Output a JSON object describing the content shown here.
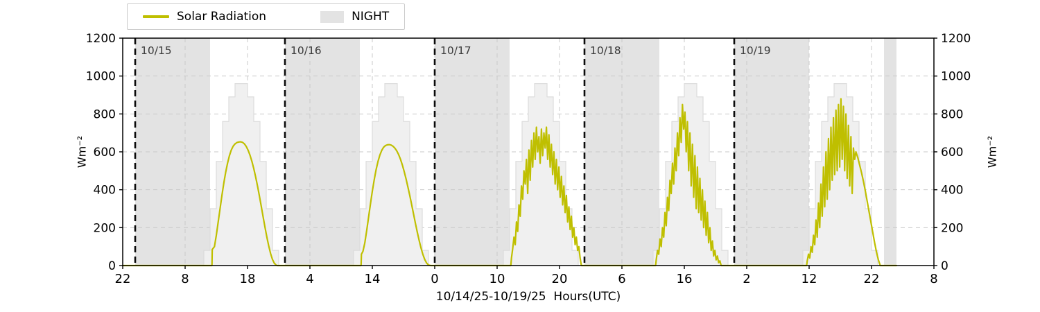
{
  "legend": {
    "items": [
      {
        "label": "Solar Radiation",
        "color": "#bfbf00"
      },
      {
        "label": "NIGHT",
        "color": "#e3e3e3"
      }
    ]
  },
  "chart_data": {
    "type": "line",
    "title": "",
    "grid": true,
    "legend_position": "top-left",
    "x_axis": {
      "label": "10/14/25-10/19/25  Hours(UTC)",
      "units": "hours since 10/14/25 22:00 UTC",
      "range": [
        0,
        130
      ],
      "tick_positions": [
        0,
        10,
        20,
        30,
        40,
        50,
        60,
        70,
        80,
        90,
        100,
        110,
        120,
        130
      ],
      "tick_labels": [
        "22",
        "8",
        "18",
        "4",
        "14",
        "0",
        "10",
        "20",
        "6",
        "16",
        "2",
        "12",
        "22",
        "8"
      ]
    },
    "y_axis": {
      "label": "Wm⁻²",
      "range": [
        0,
        1200
      ],
      "ticks": [
        0,
        200,
        400,
        600,
        800,
        1000,
        1200
      ]
    },
    "night_bands": {
      "color": "#e3e3e3",
      "intervals": [
        [
          2,
          14
        ],
        [
          26,
          38
        ],
        [
          50,
          62
        ],
        [
          74,
          86
        ],
        [
          98,
          110
        ],
        [
          122,
          124
        ]
      ]
    },
    "day_boundaries": [
      {
        "t": 2,
        "label": "10/15"
      },
      {
        "t": 26,
        "label": "10/16"
      },
      {
        "t": 50,
        "label": "10/17"
      },
      {
        "t": 74,
        "label": "10/18"
      },
      {
        "t": 98,
        "label": "10/19"
      }
    ],
    "clear_sky_envelope": {
      "fill": "#f0f0f0",
      "edge": "#dcdcdc",
      "day_start_hours": [
        13,
        37,
        61,
        85,
        109
      ],
      "hourly_values": [
        80,
        300,
        550,
        760,
        890,
        960,
        960,
        890,
        760,
        550,
        300,
        80
      ]
    },
    "series": [
      {
        "name": "Solar Radiation",
        "color": "#bfbf00",
        "points": [
          [
            0,
            0
          ],
          [
            14.3,
            0
          ],
          [
            14.35,
            85
          ],
          [
            14.7,
            100
          ],
          [
            15.0,
            160
          ],
          [
            15.3,
            230
          ],
          [
            15.6,
            300
          ],
          [
            15.9,
            370
          ],
          [
            16.2,
            435
          ],
          [
            16.5,
            492
          ],
          [
            16.8,
            540
          ],
          [
            17.1,
            580
          ],
          [
            17.4,
            610
          ],
          [
            17.7,
            630
          ],
          [
            18.0,
            642
          ],
          [
            18.3,
            649
          ],
          [
            18.6,
            652
          ],
          [
            18.9,
            653
          ],
          [
            19.2,
            650
          ],
          [
            19.5,
            642
          ],
          [
            19.8,
            628
          ],
          [
            20.1,
            608
          ],
          [
            20.4,
            582
          ],
          [
            20.7,
            550
          ],
          [
            21.0,
            512
          ],
          [
            21.3,
            468
          ],
          [
            21.6,
            420
          ],
          [
            21.9,
            368
          ],
          [
            22.2,
            313
          ],
          [
            22.5,
            257
          ],
          [
            22.8,
            202
          ],
          [
            23.1,
            150
          ],
          [
            23.4,
            103
          ],
          [
            23.7,
            63
          ],
          [
            24.0,
            32
          ],
          [
            24.3,
            12
          ],
          [
            24.6,
            2
          ],
          [
            24.75,
            0
          ],
          [
            38.2,
            0
          ],
          [
            38.25,
            60
          ],
          [
            38.5,
            75
          ],
          [
            38.8,
            120
          ],
          [
            39.1,
            185
          ],
          [
            39.4,
            255
          ],
          [
            39.7,
            325
          ],
          [
            40.0,
            392
          ],
          [
            40.3,
            452
          ],
          [
            40.6,
            505
          ],
          [
            40.9,
            548
          ],
          [
            41.2,
            582
          ],
          [
            41.5,
            607
          ],
          [
            41.8,
            624
          ],
          [
            42.1,
            633
          ],
          [
            42.4,
            637
          ],
          [
            42.7,
            638
          ],
          [
            43.0,
            636
          ],
          [
            43.3,
            630
          ],
          [
            43.6,
            620
          ],
          [
            43.9,
            606
          ],
          [
            44.2,
            587
          ],
          [
            44.5,
            562
          ],
          [
            44.8,
            532
          ],
          [
            45.1,
            497
          ],
          [
            45.4,
            458
          ],
          [
            45.7,
            415
          ],
          [
            46.0,
            370
          ],
          [
            46.3,
            322
          ],
          [
            46.6,
            273
          ],
          [
            46.9,
            224
          ],
          [
            47.2,
            177
          ],
          [
            47.5,
            133
          ],
          [
            47.8,
            93
          ],
          [
            48.1,
            59
          ],
          [
            48.4,
            32
          ],
          [
            48.7,
            13
          ],
          [
            49.0,
            3
          ],
          [
            49.35,
            0
          ],
          [
            62.2,
            0
          ],
          [
            62.3,
            40
          ],
          [
            62.5,
            90
          ],
          [
            62.7,
            150
          ],
          [
            62.9,
            110
          ],
          [
            63.1,
            230
          ],
          [
            63.3,
            180
          ],
          [
            63.5,
            320
          ],
          [
            63.7,
            260
          ],
          [
            63.9,
            420
          ],
          [
            64.1,
            350
          ],
          [
            64.3,
            500
          ],
          [
            64.5,
            430
          ],
          [
            64.7,
            560
          ],
          [
            64.9,
            380
          ],
          [
            65.1,
            610
          ],
          [
            65.3,
            450
          ],
          [
            65.5,
            660
          ],
          [
            65.7,
            520
          ],
          [
            65.9,
            700
          ],
          [
            66.1,
            560
          ],
          [
            66.3,
            730
          ],
          [
            66.5,
            600
          ],
          [
            66.7,
            680
          ],
          [
            66.9,
            540
          ],
          [
            67.1,
            720
          ],
          [
            67.3,
            580
          ],
          [
            67.5,
            700
          ],
          [
            67.7,
            620
          ],
          [
            67.9,
            730
          ],
          [
            68.1,
            560
          ],
          [
            68.3,
            690
          ],
          [
            68.5,
            520
          ],
          [
            68.7,
            640
          ],
          [
            68.9,
            480
          ],
          [
            69.1,
            600
          ],
          [
            69.3,
            430
          ],
          [
            69.5,
            560
          ],
          [
            69.7,
            400
          ],
          [
            69.9,
            520
          ],
          [
            70.1,
            360
          ],
          [
            70.3,
            470
          ],
          [
            70.5,
            320
          ],
          [
            70.7,
            420
          ],
          [
            70.9,
            280
          ],
          [
            71.1,
            370
          ],
          [
            71.3,
            230
          ],
          [
            71.5,
            310
          ],
          [
            71.7,
            190
          ],
          [
            71.9,
            260
          ],
          [
            72.1,
            150
          ],
          [
            72.3,
            200
          ],
          [
            72.5,
            110
          ],
          [
            72.7,
            150
          ],
          [
            72.9,
            80
          ],
          [
            73.1,
            100
          ],
          [
            73.3,
            40
          ],
          [
            73.5,
            0
          ],
          [
            85.4,
            0
          ],
          [
            85.5,
            30
          ],
          [
            85.7,
            80
          ],
          [
            85.9,
            60
          ],
          [
            86.1,
            140
          ],
          [
            86.3,
            100
          ],
          [
            86.5,
            200
          ],
          [
            86.7,
            150
          ],
          [
            86.9,
            280
          ],
          [
            87.1,
            210
          ],
          [
            87.3,
            360
          ],
          [
            87.5,
            290
          ],
          [
            87.7,
            450
          ],
          [
            87.9,
            380
          ],
          [
            88.1,
            540
          ],
          [
            88.3,
            430
          ],
          [
            88.5,
            620
          ],
          [
            88.7,
            500
          ],
          [
            88.9,
            700
          ],
          [
            89.1,
            580
          ],
          [
            89.3,
            780
          ],
          [
            89.5,
            650
          ],
          [
            89.7,
            850
          ],
          [
            89.9,
            720
          ],
          [
            90.1,
            810
          ],
          [
            90.3,
            600
          ],
          [
            90.5,
            760
          ],
          [
            90.7,
            500
          ],
          [
            90.9,
            700
          ],
          [
            91.1,
            420
          ],
          [
            91.3,
            640
          ],
          [
            91.5,
            360
          ],
          [
            91.7,
            580
          ],
          [
            91.9,
            300
          ],
          [
            92.1,
            520
          ],
          [
            92.3,
            280
          ],
          [
            92.5,
            460
          ],
          [
            92.7,
            240
          ],
          [
            92.9,
            400
          ],
          [
            93.1,
            200
          ],
          [
            93.3,
            340
          ],
          [
            93.5,
            160
          ],
          [
            93.7,
            280
          ],
          [
            93.9,
            120
          ],
          [
            94.1,
            200
          ],
          [
            94.3,
            80
          ],
          [
            94.5,
            130
          ],
          [
            94.7,
            50
          ],
          [
            94.9,
            80
          ],
          [
            95.1,
            30
          ],
          [
            95.3,
            50
          ],
          [
            95.5,
            15
          ],
          [
            95.7,
            25
          ],
          [
            95.9,
            0
          ],
          [
            109.6,
            0
          ],
          [
            109.7,
            25
          ],
          [
            109.9,
            60
          ],
          [
            110.1,
            40
          ],
          [
            110.3,
            100
          ],
          [
            110.5,
            70
          ],
          [
            110.7,
            160
          ],
          [
            110.9,
            110
          ],
          [
            111.1,
            240
          ],
          [
            111.3,
            150
          ],
          [
            111.5,
            330
          ],
          [
            111.7,
            200
          ],
          [
            111.9,
            430
          ],
          [
            112.1,
            260
          ],
          [
            112.3,
            520
          ],
          [
            112.5,
            310
          ],
          [
            112.7,
            600
          ],
          [
            112.9,
            350
          ],
          [
            113.1,
            670
          ],
          [
            113.3,
            400
          ],
          [
            113.5,
            730
          ],
          [
            113.7,
            450
          ],
          [
            113.9,
            780
          ],
          [
            114.1,
            480
          ],
          [
            114.3,
            820
          ],
          [
            114.5,
            500
          ],
          [
            114.7,
            850
          ],
          [
            114.9,
            520
          ],
          [
            115.1,
            880
          ],
          [
            115.3,
            560
          ],
          [
            115.5,
            840
          ],
          [
            115.7,
            500
          ],
          [
            115.9,
            800
          ],
          [
            116.1,
            460
          ],
          [
            116.3,
            740
          ],
          [
            116.5,
            420
          ],
          [
            116.7,
            680
          ],
          [
            116.9,
            380
          ],
          [
            117.1,
            620
          ],
          [
            117.3,
            560
          ],
          [
            117.5,
            600
          ],
          [
            117.8,
            570
          ],
          [
            118.1,
            530
          ],
          [
            118.4,
            490
          ],
          [
            118.7,
            445
          ],
          [
            119.0,
            395
          ],
          [
            119.3,
            340
          ],
          [
            119.6,
            285
          ],
          [
            119.9,
            230
          ],
          [
            120.2,
            175
          ],
          [
            120.5,
            120
          ],
          [
            120.8,
            70
          ],
          [
            121.1,
            30
          ],
          [
            121.4,
            0
          ],
          [
            124,
            0
          ]
        ]
      }
    ]
  }
}
